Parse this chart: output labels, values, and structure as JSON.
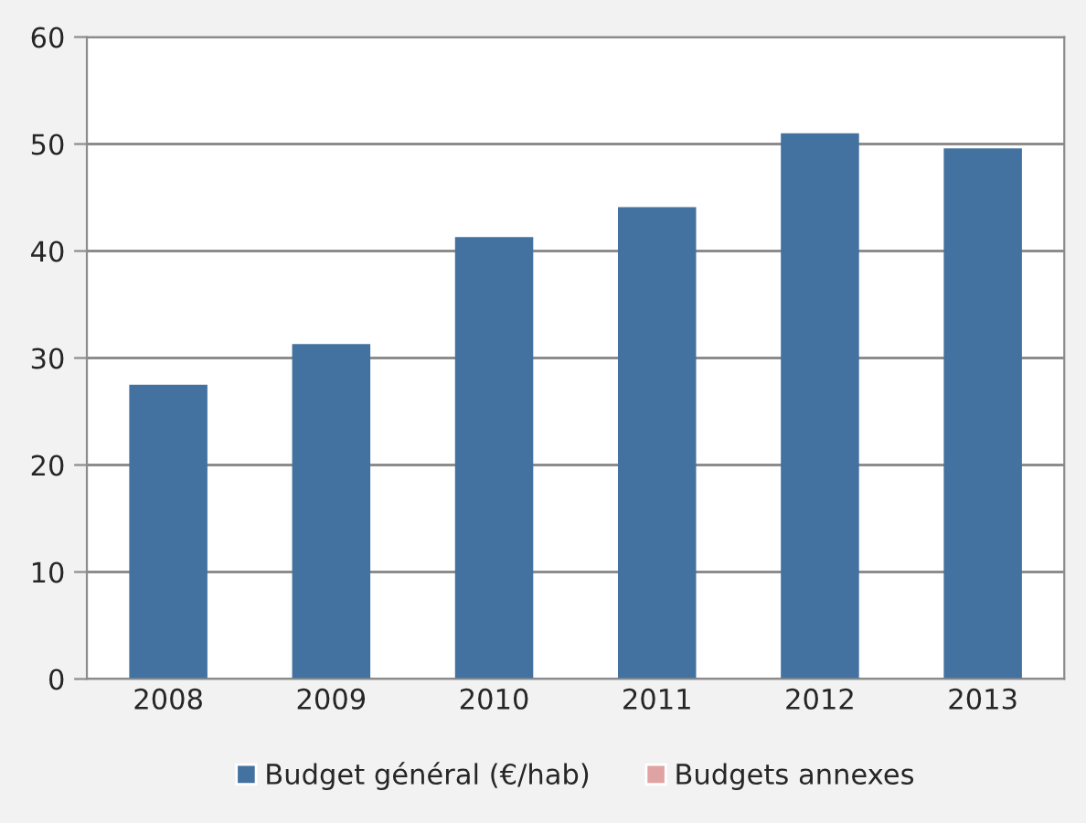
{
  "chart_data": {
    "type": "bar",
    "stacked": true,
    "categories": [
      "2008",
      "2009",
      "2010",
      "2011",
      "2012",
      "2013"
    ],
    "series": [
      {
        "name": "Budget général (€/hab)",
        "color": "#4472a0",
        "values": [
          27.5,
          31.3,
          41.3,
          44.1,
          51,
          49.6
        ]
      },
      {
        "name": "Budgets annexes",
        "color": "#e0a3a3",
        "values": [
          0,
          0,
          0,
          0,
          0,
          0
        ]
      }
    ],
    "ylim": [
      0,
      60
    ],
    "yticks": [
      0,
      10,
      20,
      30,
      40,
      50,
      60
    ],
    "grid": "y",
    "legend": "bottom"
  }
}
